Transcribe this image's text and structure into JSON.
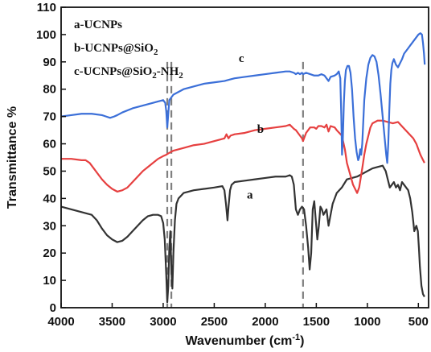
{
  "chart_data": {
    "type": "line",
    "xlabel_main": "Wavenumber (cm",
    "xlabel_sup": "-1",
    "xlabel_tail": ")",
    "ylabel": "Transmittance %",
    "xlim": [
      4000,
      400
    ],
    "ylim": [
      0,
      110
    ],
    "x_ticks": [
      4000,
      3500,
      3000,
      2500,
      2000,
      1500,
      1000,
      500
    ],
    "y_ticks": [
      0,
      10,
      20,
      30,
      40,
      50,
      60,
      70,
      80,
      90,
      100,
      110
    ],
    "legend": [
      {
        "parts": [
          {
            "t": "a-UCNPs"
          }
        ]
      },
      {
        "parts": [
          {
            "t": "b-UCNPs@SiO"
          },
          {
            "t": "2",
            "sub": true
          }
        ]
      },
      {
        "parts": [
          {
            "t": "c-UCNPs@SiO"
          },
          {
            "t": "2",
            "sub": true
          },
          {
            "t": "-NH"
          },
          {
            "t": "2",
            "sub": true
          }
        ]
      }
    ],
    "reference_lines_x": [
      2960,
      2920,
      1630
    ],
    "reference_line_color": "#808080",
    "series": [
      {
        "label": "a",
        "color": "#333333",
        "label_pos": [
          2180,
          40
        ],
        "points": [
          [
            4000,
            37
          ],
          [
            3900,
            36
          ],
          [
            3800,
            35
          ],
          [
            3700,
            34
          ],
          [
            3650,
            32
          ],
          [
            3600,
            29
          ],
          [
            3550,
            26.5
          ],
          [
            3500,
            25
          ],
          [
            3450,
            24
          ],
          [
            3400,
            24.5
          ],
          [
            3350,
            26
          ],
          [
            3300,
            28
          ],
          [
            3250,
            30
          ],
          [
            3200,
            32
          ],
          [
            3150,
            33.5
          ],
          [
            3100,
            34
          ],
          [
            3050,
            34
          ],
          [
            3020,
            33.5
          ],
          [
            3000,
            31
          ],
          [
            2985,
            25
          ],
          [
            2970,
            12
          ],
          [
            2960,
            2
          ],
          [
            2950,
            8
          ],
          [
            2940,
            22
          ],
          [
            2930,
            28
          ],
          [
            2920,
            14
          ],
          [
            2910,
            7
          ],
          [
            2900,
            20
          ],
          [
            2885,
            32
          ],
          [
            2870,
            38
          ],
          [
            2850,
            40
          ],
          [
            2800,
            42
          ],
          [
            2700,
            43
          ],
          [
            2600,
            43.5
          ],
          [
            2500,
            44
          ],
          [
            2420,
            44.5
          ],
          [
            2400,
            43
          ],
          [
            2385,
            38
          ],
          [
            2370,
            32
          ],
          [
            2360,
            37
          ],
          [
            2345,
            43
          ],
          [
            2330,
            45
          ],
          [
            2300,
            46
          ],
          [
            2200,
            46.5
          ],
          [
            2100,
            47
          ],
          [
            2000,
            47.5
          ],
          [
            1900,
            48
          ],
          [
            1800,
            48
          ],
          [
            1760,
            48.5
          ],
          [
            1740,
            48
          ],
          [
            1720,
            45
          ],
          [
            1700,
            36
          ],
          [
            1680,
            34
          ],
          [
            1660,
            36
          ],
          [
            1640,
            37
          ],
          [
            1620,
            36
          ],
          [
            1600,
            30
          ],
          [
            1580,
            22
          ],
          [
            1565,
            14
          ],
          [
            1550,
            20
          ],
          [
            1535,
            36
          ],
          [
            1520,
            39
          ],
          [
            1505,
            32
          ],
          [
            1490,
            25
          ],
          [
            1475,
            30
          ],
          [
            1460,
            37
          ],
          [
            1445,
            36
          ],
          [
            1430,
            34
          ],
          [
            1400,
            36
          ],
          [
            1380,
            30
          ],
          [
            1360,
            34
          ],
          [
            1340,
            38
          ],
          [
            1300,
            42
          ],
          [
            1250,
            44
          ],
          [
            1200,
            47
          ],
          [
            1150,
            47.5
          ],
          [
            1100,
            48
          ],
          [
            1050,
            49
          ],
          [
            1000,
            50
          ],
          [
            950,
            51
          ],
          [
            900,
            51.5
          ],
          [
            850,
            52
          ],
          [
            820,
            50
          ],
          [
            800,
            47
          ],
          [
            780,
            44
          ],
          [
            760,
            45
          ],
          [
            740,
            46
          ],
          [
            720,
            44
          ],
          [
            700,
            45
          ],
          [
            680,
            43
          ],
          [
            660,
            46
          ],
          [
            640,
            45
          ],
          [
            620,
            44
          ],
          [
            600,
            43
          ],
          [
            580,
            40
          ],
          [
            560,
            35
          ],
          [
            540,
            28
          ],
          [
            520,
            30
          ],
          [
            505,
            28
          ],
          [
            495,
            22
          ],
          [
            485,
            15
          ],
          [
            470,
            8
          ],
          [
            455,
            5
          ],
          [
            440,
            4
          ]
        ]
      },
      {
        "label": "b",
        "color": "#e64040",
        "label_pos": [
          2080,
          64
        ],
        "points": [
          [
            4000,
            54.5
          ],
          [
            3900,
            54.5
          ],
          [
            3800,
            54
          ],
          [
            3760,
            54
          ],
          [
            3720,
            53
          ],
          [
            3680,
            51
          ],
          [
            3640,
            49
          ],
          [
            3600,
            47
          ],
          [
            3550,
            45
          ],
          [
            3500,
            43.5
          ],
          [
            3450,
            42.5
          ],
          [
            3400,
            43
          ],
          [
            3350,
            44
          ],
          [
            3300,
            46
          ],
          [
            3250,
            48
          ],
          [
            3200,
            50
          ],
          [
            3150,
            51.5
          ],
          [
            3100,
            53
          ],
          [
            3050,
            54.5
          ],
          [
            3000,
            55.5
          ],
          [
            2970,
            56
          ],
          [
            2950,
            56.5
          ],
          [
            2900,
            57.5
          ],
          [
            2800,
            58.5
          ],
          [
            2700,
            59.5
          ],
          [
            2600,
            60
          ],
          [
            2500,
            61
          ],
          [
            2400,
            62
          ],
          [
            2380,
            63.5
          ],
          [
            2360,
            62
          ],
          [
            2340,
            63
          ],
          [
            2300,
            63.5
          ],
          [
            2200,
            64
          ],
          [
            2100,
            65
          ],
          [
            2000,
            65.5
          ],
          [
            1900,
            66
          ],
          [
            1800,
            66.5
          ],
          [
            1760,
            67
          ],
          [
            1720,
            65.5
          ],
          [
            1700,
            65
          ],
          [
            1680,
            64
          ],
          [
            1660,
            63
          ],
          [
            1640,
            62
          ],
          [
            1630,
            61
          ],
          [
            1620,
            62
          ],
          [
            1600,
            64
          ],
          [
            1560,
            66
          ],
          [
            1520,
            66
          ],
          [
            1500,
            65.5
          ],
          [
            1480,
            66.5
          ],
          [
            1450,
            66.5
          ],
          [
            1420,
            66
          ],
          [
            1400,
            67
          ],
          [
            1380,
            64.5
          ],
          [
            1360,
            66.5
          ],
          [
            1320,
            66
          ],
          [
            1300,
            65
          ],
          [
            1250,
            63
          ],
          [
            1220,
            58
          ],
          [
            1200,
            53
          ],
          [
            1170,
            49
          ],
          [
            1140,
            45
          ],
          [
            1100,
            42
          ],
          [
            1080,
            44
          ],
          [
            1050,
            51
          ],
          [
            1030,
            56
          ],
          [
            1010,
            60
          ],
          [
            990,
            63
          ],
          [
            970,
            66
          ],
          [
            950,
            67.5
          ],
          [
            900,
            68.5
          ],
          [
            850,
            68.5
          ],
          [
            800,
            68
          ],
          [
            750,
            67.5
          ],
          [
            700,
            68
          ],
          [
            650,
            66
          ],
          [
            600,
            64
          ],
          [
            550,
            62
          ],
          [
            520,
            60
          ],
          [
            500,
            58
          ],
          [
            480,
            56
          ],
          [
            460,
            54.5
          ],
          [
            440,
            53
          ]
        ]
      },
      {
        "label": "c",
        "color": "#3b6fd8",
        "label_pos": [
          2260,
          90
        ],
        "points": [
          [
            4000,
            70
          ],
          [
            3900,
            70.5
          ],
          [
            3800,
            71
          ],
          [
            3700,
            71
          ],
          [
            3600,
            70.5
          ],
          [
            3560,
            70
          ],
          [
            3520,
            69.5
          ],
          [
            3480,
            70
          ],
          [
            3450,
            70.5
          ],
          [
            3400,
            71.5
          ],
          [
            3300,
            73
          ],
          [
            3200,
            74
          ],
          [
            3100,
            75
          ],
          [
            3050,
            75.5
          ],
          [
            3000,
            76
          ],
          [
            2980,
            75
          ],
          [
            2970,
            72
          ],
          [
            2960,
            66
          ],
          [
            2950,
            71
          ],
          [
            2940,
            76
          ],
          [
            2920,
            77
          ],
          [
            2900,
            78
          ],
          [
            2800,
            80
          ],
          [
            2700,
            81
          ],
          [
            2600,
            82
          ],
          [
            2500,
            82.5
          ],
          [
            2400,
            83
          ],
          [
            2350,
            83.5
          ],
          [
            2300,
            84
          ],
          [
            2200,
            84.5
          ],
          [
            2100,
            85
          ],
          [
            2000,
            85.5
          ],
          [
            1900,
            86
          ],
          [
            1800,
            86.5
          ],
          [
            1760,
            86.5
          ],
          [
            1720,
            86
          ],
          [
            1700,
            85.5
          ],
          [
            1680,
            86
          ],
          [
            1660,
            85.5
          ],
          [
            1640,
            86
          ],
          [
            1630,
            85.5
          ],
          [
            1600,
            86
          ],
          [
            1560,
            85.5
          ],
          [
            1520,
            85
          ],
          [
            1480,
            85
          ],
          [
            1450,
            85.5
          ],
          [
            1420,
            85
          ],
          [
            1400,
            84
          ],
          [
            1380,
            83
          ],
          [
            1360,
            84.5
          ],
          [
            1320,
            85
          ],
          [
            1300,
            85.5
          ],
          [
            1280,
            86.5
          ],
          [
            1265,
            84
          ],
          [
            1255,
            70
          ],
          [
            1248,
            56
          ],
          [
            1240,
            62
          ],
          [
            1230,
            75
          ],
          [
            1220,
            83
          ],
          [
            1210,
            87
          ],
          [
            1195,
            88.5
          ],
          [
            1180,
            88.5
          ],
          [
            1165,
            86
          ],
          [
            1150,
            80
          ],
          [
            1135,
            70
          ],
          [
            1120,
            62
          ],
          [
            1105,
            57
          ],
          [
            1090,
            54
          ],
          [
            1080,
            55
          ],
          [
            1070,
            58
          ],
          [
            1060,
            56
          ],
          [
            1050,
            60
          ],
          [
            1040,
            68
          ],
          [
            1030,
            76
          ],
          [
            1010,
            84
          ],
          [
            990,
            89
          ],
          [
            970,
            91.5
          ],
          [
            950,
            92.5
          ],
          [
            930,
            92
          ],
          [
            910,
            90
          ],
          [
            890,
            85
          ],
          [
            870,
            78
          ],
          [
            850,
            70
          ],
          [
            830,
            62
          ],
          [
            815,
            56
          ],
          [
            805,
            53
          ],
          [
            795,
            60
          ],
          [
            785,
            72
          ],
          [
            775,
            82
          ],
          [
            765,
            87
          ],
          [
            755,
            89.5
          ],
          [
            740,
            91
          ],
          [
            720,
            89
          ],
          [
            700,
            88
          ],
          [
            680,
            89.5
          ],
          [
            660,
            91
          ],
          [
            640,
            93
          ],
          [
            620,
            94
          ],
          [
            600,
            95
          ],
          [
            580,
            96
          ],
          [
            560,
            97
          ],
          [
            540,
            98
          ],
          [
            520,
            99
          ],
          [
            500,
            100
          ],
          [
            480,
            100.5
          ],
          [
            465,
            100
          ],
          [
            455,
            97
          ],
          [
            445,
            93
          ],
          [
            438,
            89
          ]
        ]
      }
    ]
  }
}
